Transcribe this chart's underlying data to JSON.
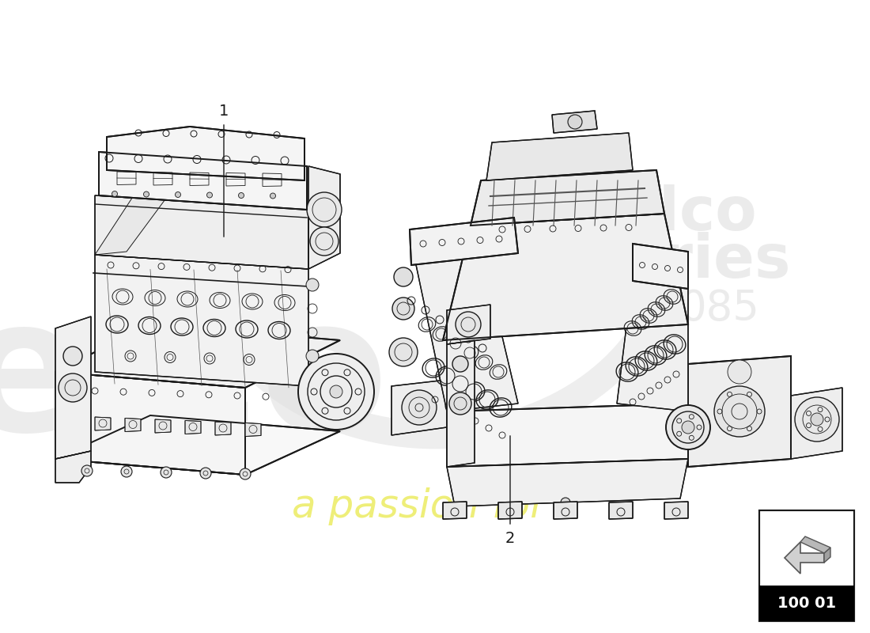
{
  "background_color": "#ffffff",
  "line_color": "#1a1a1a",
  "light_line_color": "#555555",
  "part_number": "100 01",
  "label1": "1",
  "label2": "2",
  "watermark_elco_color": "#e0e0e0",
  "watermark_passion_color": "#e8e840",
  "watermark_logo_color": "#d8d8d8",
  "figsize": [
    11.0,
    8.0
  ],
  "dpi": 100
}
